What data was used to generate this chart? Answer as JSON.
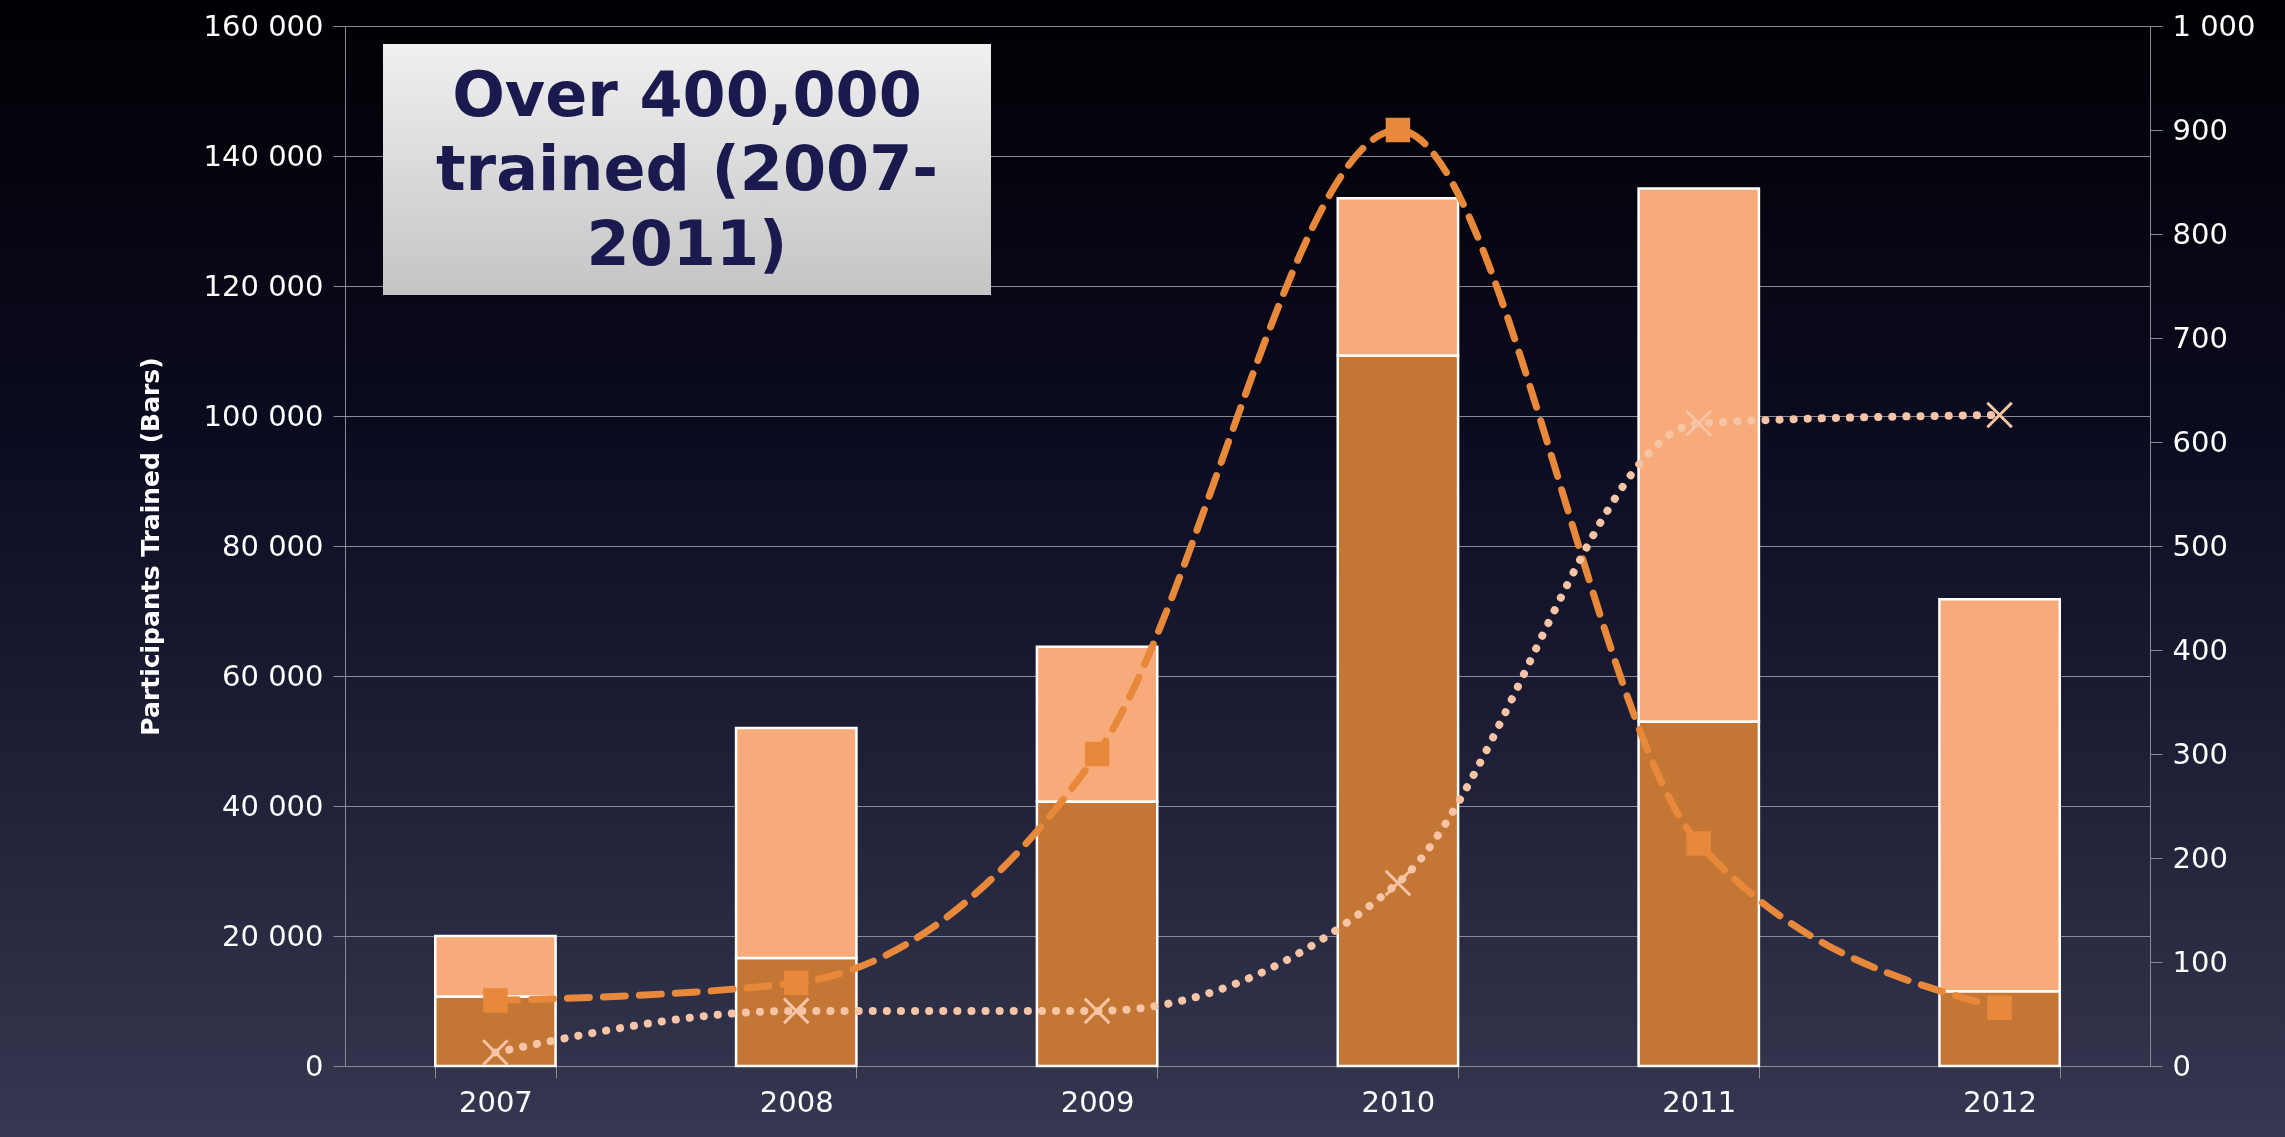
{
  "chart_data": {
    "type": "bar",
    "stacked": true,
    "ylabel": "Participants Trained (Bars)",
    "categories": [
      "2007",
      "2008",
      "2009",
      "2010",
      "2011",
      "2012"
    ],
    "series": [
      {
        "color": "#c47635",
        "values": [
          10700,
          16600,
          40700,
          109300,
          53000,
          11500
        ]
      },
      {
        "color": "#f7ab7a",
        "values": [
          9300,
          35400,
          23800,
          24200,
          82000,
          60300
        ]
      },
      {
        "type": "line",
        "axis": "y2",
        "color": "#e8883a",
        "marker": "square",
        "line_style": "dashed",
        "values": [
          63,
          80,
          300,
          900,
          214,
          56
        ]
      },
      {
        "type": "line",
        "axis": "y2",
        "color": "#f7c4a5",
        "marker": "cross",
        "line_style": "dotted",
        "values": [
          13,
          53,
          53,
          176,
          618,
          626
        ]
      }
    ],
    "ylim": [
      0,
      160000
    ],
    "yticks": [
      0,
      {
        "value": 20000,
        "label": "20 000"
      },
      {
        "value": 40000,
        "label": "40 000"
      },
      {
        "value": 60000,
        "label": "60 000"
      },
      {
        "value": 80000,
        "label": "80 000"
      },
      {
        "value": 100000,
        "label": "100 000"
      },
      {
        "value": 120000,
        "label": "120 000"
      },
      {
        "value": 140000,
        "label": "140 000"
      },
      {
        "value": 160000,
        "label": "160 000"
      }
    ],
    "y2lim": [
      0,
      1000
    ],
    "y2ticks": [
      0,
      100,
      200,
      300,
      400,
      500,
      600,
      700,
      800,
      900,
      {
        "value": 1000,
        "label": "1 000"
      }
    ],
    "grid": "y",
    "annotations": [
      "Over 400,000 trained (2007-2011)"
    ]
  }
}
